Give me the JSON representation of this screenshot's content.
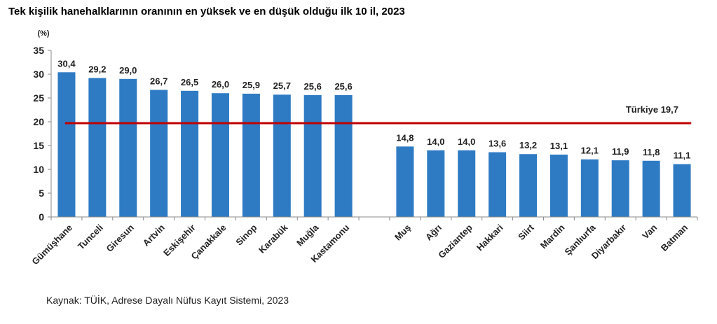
{
  "title": "Tek kişilik hanehalklarının oranının en yüksek ve en düşük olduğu ilk 10 il, 2023",
  "source": "Kaynak: TÜİK, Adrese Dayalı Nüfus Kayıt Sistemi, 2023",
  "chart_data": {
    "type": "bar",
    "title": "Tek kişilik hanehalklarının oranının en yüksek ve en düşük olduğu ilk 10 il, 2023",
    "ylabel": "(%)",
    "ylim": [
      0,
      35
    ],
    "yticks": [
      "0",
      "5",
      "10",
      "15",
      "20",
      "25",
      "30",
      "35"
    ],
    "categories": [
      "Gümüşhane",
      "Tunceli",
      "Giresun",
      "Artvin",
      "Eskişehir",
      "Çanakkale",
      "Sinop",
      "Karabük",
      "Muğla",
      "Kastamonu",
      "",
      "Muş",
      "Ağrı",
      "Gaziantep",
      "Hakkari",
      "Siirt",
      "Mardin",
      "Şanlıurfa",
      "Diyarbakır",
      "Van",
      "Batman"
    ],
    "values": [
      30.4,
      29.2,
      29.0,
      26.7,
      26.5,
      26.0,
      25.9,
      25.7,
      25.6,
      25.6,
      null,
      14.8,
      14.0,
      14.0,
      13.6,
      13.2,
      13.1,
      12.1,
      11.9,
      11.8,
      11.1
    ],
    "value_labels": [
      "30,4",
      "29,2",
      "29,0",
      "26,7",
      "26,5",
      "26,0",
      "25,9",
      "25,7",
      "25,6",
      "25,6",
      "",
      "14,8",
      "14,0",
      "14,0",
      "13,6",
      "13,2",
      "13,1",
      "12,1",
      "11,9",
      "11,8",
      "11,1"
    ],
    "reference_line": {
      "label": "Türkiye  19,7",
      "value": 19.7,
      "color": "#c00000"
    },
    "bar_color": "#2e7bc4",
    "grid": false
  }
}
